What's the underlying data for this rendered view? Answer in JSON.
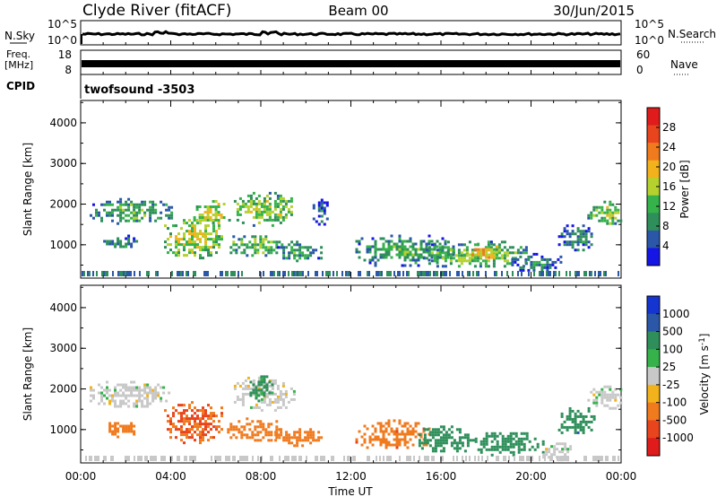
{
  "header": {
    "station": "Clyde River (fitACF)",
    "beam": "Beam 00",
    "date": "30/Jun/2015"
  },
  "strips": {
    "nsky_label": "N.Sky",
    "nsearch_label": "N.Search",
    "nsky_scale": [
      "10^5",
      "10^0"
    ],
    "nsearch_scale": [
      "10^5",
      "10^0"
    ],
    "freq_label_line1": "Freq.",
    "freq_label_line2": "[MHz]",
    "freq_scale": [
      "18",
      "8"
    ],
    "nave_label": "Nave",
    "nave_scale": [
      "60",
      "0"
    ],
    "cpid_label": "CPID",
    "cpid_value": "twofsound -3503"
  },
  "colors": {
    "power": [
      "#1515e6",
      "#2b57a8",
      "#2e8f5a",
      "#35b24a",
      "#b5d12e",
      "#f2b21c",
      "#f07a1e",
      "#e8441d",
      "#e01b1b"
    ],
    "velocity": [
      "#e01b1b",
      "#e8441d",
      "#f07a1e",
      "#f2b21c",
      "#c8c8c8",
      "#35b24a",
      "#2e8f5a",
      "#2b57a8",
      "#1535d0"
    ]
  },
  "chart_data": [
    {
      "type": "heatmap",
      "quantity": "power",
      "xlabel": "",
      "ylabel": "Slant Range [km]",
      "xlim": [
        0,
        24
      ],
      "ylim": [
        180,
        4550
      ],
      "y_ticks": [
        "1000",
        "2000",
        "3000",
        "4000"
      ],
      "colorbar_label": "Power [dB]",
      "colorbar_ticks": [
        "28",
        "24",
        "20",
        "16",
        "12",
        "8",
        "4"
      ],
      "colorbar_range": [
        0,
        32
      ],
      "echo_regions": [
        {
          "t0": 0.4,
          "t1": 4.0,
          "r0": 1550,
          "r1": 2150,
          "level": 14
        },
        {
          "t0": 1.0,
          "t1": 2.5,
          "r0": 900,
          "r1": 1250,
          "level": 10
        },
        {
          "t0": 3.7,
          "t1": 6.3,
          "r0": 700,
          "r1": 1700,
          "level": 19
        },
        {
          "t0": 5.0,
          "t1": 6.6,
          "r0": 1500,
          "r1": 2100,
          "level": 20
        },
        {
          "t0": 6.8,
          "t1": 9.5,
          "r0": 1500,
          "r1": 2300,
          "level": 17
        },
        {
          "t0": 6.5,
          "t1": 9.0,
          "r0": 750,
          "r1": 1300,
          "level": 15
        },
        {
          "t0": 8.6,
          "t1": 10.7,
          "r0": 600,
          "r1": 1100,
          "level": 12
        },
        {
          "t0": 10.3,
          "t1": 11.0,
          "r0": 1500,
          "r1": 2200,
          "level": 8
        },
        {
          "t0": 12.2,
          "t1": 16.5,
          "r0": 500,
          "r1": 1250,
          "level": 13
        },
        {
          "t0": 15.2,
          "t1": 19.8,
          "r0": 450,
          "r1": 1100,
          "level": 15
        },
        {
          "t0": 17.0,
          "t1": 18.5,
          "r0": 650,
          "r1": 1050,
          "level": 23
        },
        {
          "t0": 19.0,
          "t1": 21.5,
          "r0": 350,
          "r1": 800,
          "level": 9
        },
        {
          "t0": 22.5,
          "t1": 24.0,
          "r0": 1500,
          "r1": 2150,
          "level": 17
        },
        {
          "t0": 21.2,
          "t1": 22.8,
          "r0": 900,
          "r1": 1500,
          "level": 10
        }
      ]
    },
    {
      "type": "heatmap",
      "quantity": "velocity",
      "xlabel": "Time UT",
      "ylabel": "Slant Range [km]",
      "xlim": [
        0,
        24
      ],
      "ylim": [
        180,
        4550
      ],
      "x_ticks": [
        "00:00",
        "04:00",
        "08:00",
        "12:00",
        "16:00",
        "20:00",
        "00:00"
      ],
      "y_ticks": [
        "1000",
        "2000",
        "3000",
        "4000"
      ],
      "colorbar_label": "Velocity [m s^-1]",
      "colorbar_ticks": [
        "1000",
        "500",
        "100",
        "25",
        "-25",
        "-100",
        "-500",
        "-1000"
      ],
      "echo_regions": [
        {
          "t0": 0.4,
          "t1": 4.0,
          "r0": 1550,
          "r1": 2200,
          "vel": 0
        },
        {
          "t0": 1.0,
          "t1": 2.5,
          "r0": 850,
          "r1": 1250,
          "vel": -300
        },
        {
          "t0": 3.7,
          "t1": 6.3,
          "r0": 700,
          "r1": 1700,
          "vel": -500
        },
        {
          "t0": 6.5,
          "t1": 9.0,
          "r0": 750,
          "r1": 1300,
          "vel": -350
        },
        {
          "t0": 6.8,
          "t1": 9.5,
          "r0": 1500,
          "r1": 2300,
          "vel": 0
        },
        {
          "t0": 7.5,
          "t1": 8.5,
          "r0": 1700,
          "r1": 2400,
          "vel": 150
        },
        {
          "t0": 8.6,
          "t1": 10.7,
          "r0": 600,
          "r1": 1100,
          "vel": -250
        },
        {
          "t0": 12.2,
          "t1": 15.5,
          "r0": 550,
          "r1": 1250,
          "vel": -350
        },
        {
          "t0": 15.0,
          "t1": 17.5,
          "r0": 450,
          "r1": 1100,
          "vel": 300
        },
        {
          "t0": 17.5,
          "t1": 20.5,
          "r0": 400,
          "r1": 1000,
          "vel": 200
        },
        {
          "t0": 20.5,
          "t1": 21.8,
          "r0": 250,
          "r1": 750,
          "vel": 0
        },
        {
          "t0": 22.5,
          "t1": 24.0,
          "r0": 1500,
          "r1": 2150,
          "vel": 0
        },
        {
          "t0": 21.2,
          "t1": 22.8,
          "r0": 900,
          "r1": 1550,
          "vel": 350
        }
      ]
    }
  ]
}
